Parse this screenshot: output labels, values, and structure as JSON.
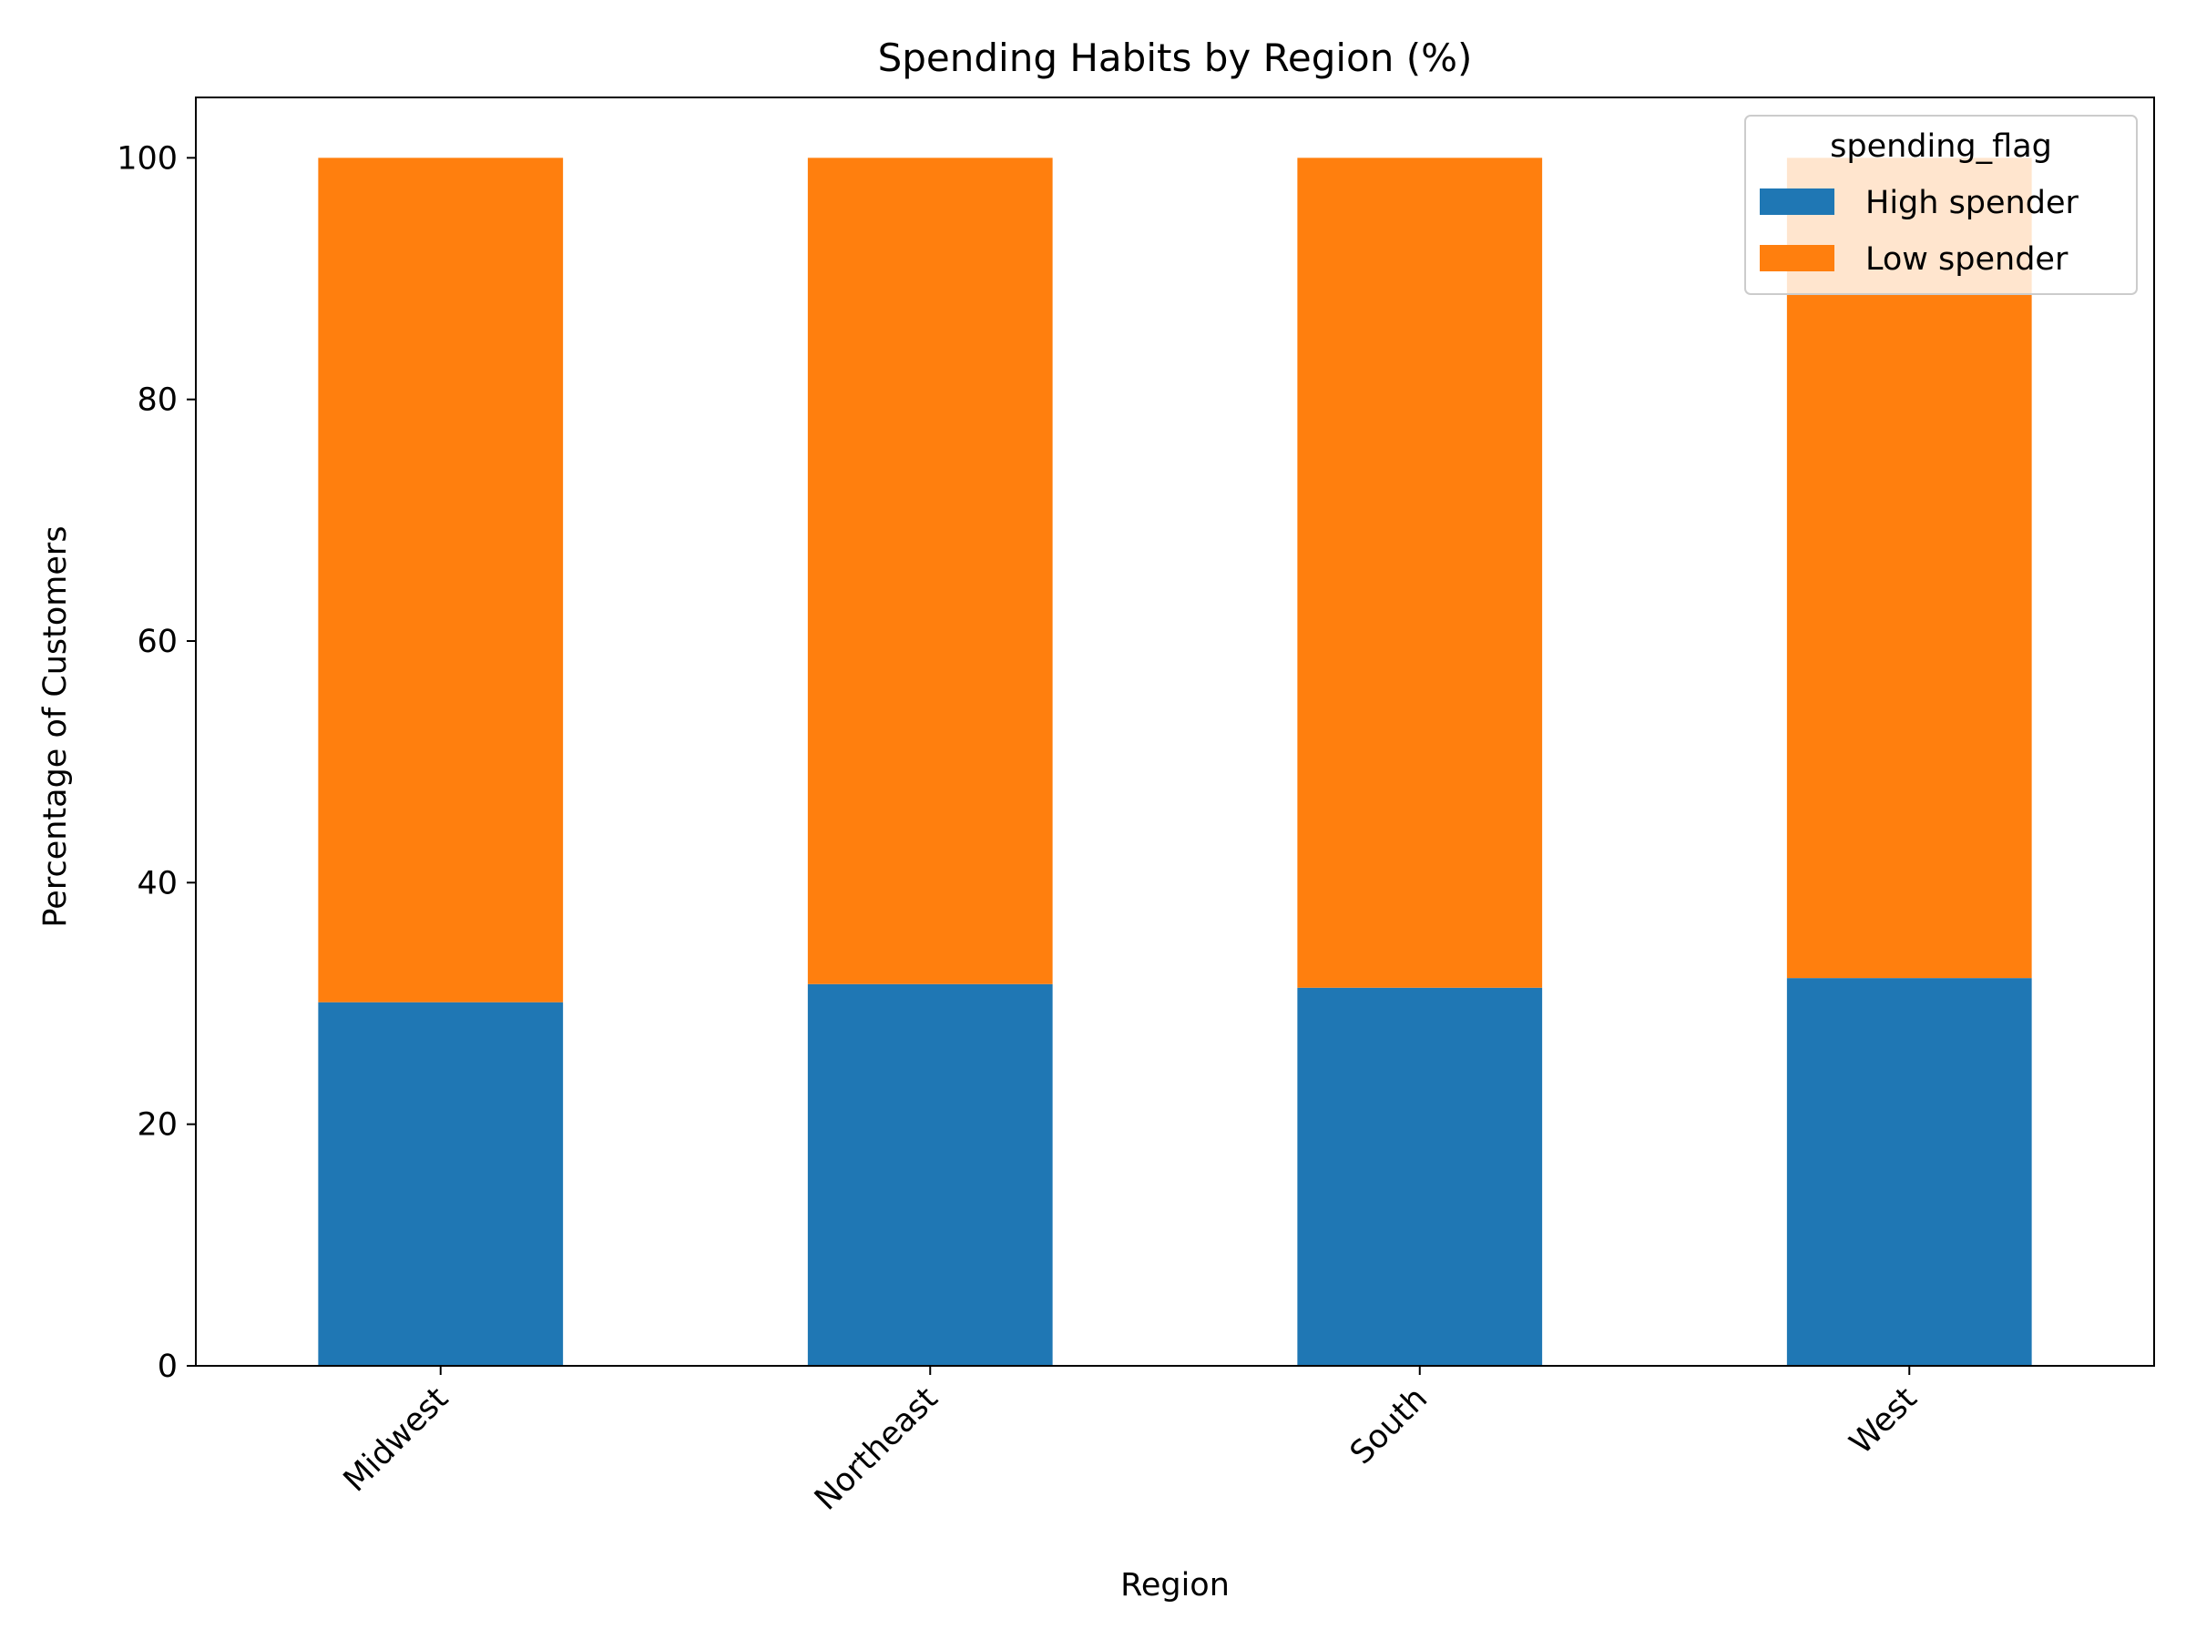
{
  "chart_data": {
    "type": "bar",
    "stacked": true,
    "title": "Spending Habits by Region (%)",
    "xlabel": "Region",
    "ylabel": "Percentage of Customers",
    "categories": [
      "Midwest",
      "Northeast",
      "South",
      "West"
    ],
    "series": [
      {
        "name": "High spender",
        "values": [
          30.1,
          31.6,
          31.3,
          32.1
        ]
      },
      {
        "name": "Low spender",
        "values": [
          69.9,
          68.4,
          68.7,
          67.9
        ]
      }
    ],
    "ylim": [
      0,
      105
    ],
    "yticks": [
      0,
      20,
      40,
      60,
      80,
      100
    ],
    "grid": false,
    "legend": {
      "title": "spending_flag",
      "placement": "top-right"
    },
    "colors": {
      "High spender": "#1f77b4",
      "Low spender": "#ff7f0e"
    }
  }
}
